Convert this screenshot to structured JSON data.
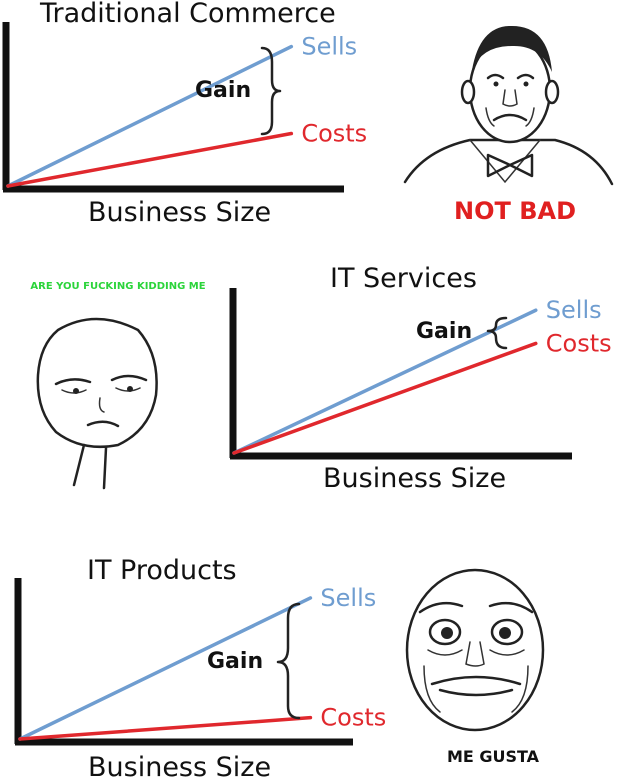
{
  "colors": {
    "sells": "#6f9dd0",
    "costs": "#e0282d",
    "axis": "#111111"
  },
  "chart_data": [
    {
      "type": "line",
      "title": "Traditional Commerce",
      "xlabel": "Business Size",
      "ylabel": "",
      "annotation": "Gain",
      "grid": false,
      "series": [
        {
          "name": "Sells",
          "x": [
            0,
            1
          ],
          "values": [
            0,
            0.85
          ]
        },
        {
          "name": "Costs",
          "x": [
            0,
            1
          ],
          "values": [
            0,
            0.32
          ]
        }
      ],
      "xlim": [
        0,
        1.2
      ],
      "ylim": [
        0,
        1
      ]
    },
    {
      "type": "line",
      "title": "IT Services",
      "xlabel": "Business Size",
      "ylabel": "",
      "annotation": "Gain",
      "grid": false,
      "series": [
        {
          "name": "Sells",
          "x": [
            0,
            1
          ],
          "values": [
            0,
            0.86
          ]
        },
        {
          "name": "Costs",
          "x": [
            0,
            1
          ],
          "values": [
            0,
            0.66
          ]
        }
      ],
      "xlim": [
        0,
        1.12
      ],
      "ylim": [
        0,
        1
      ]
    },
    {
      "type": "line",
      "title": "IT Products",
      "xlabel": "Business Size",
      "ylabel": "",
      "annotation": "Gain",
      "grid": false,
      "series": [
        {
          "name": "Sells",
          "x": [
            0,
            1
          ],
          "values": [
            0,
            0.86
          ]
        },
        {
          "name": "Costs",
          "x": [
            0,
            1
          ],
          "values": [
            0,
            0.13
          ]
        }
      ],
      "xlim": [
        0,
        1.15
      ],
      "ylim": [
        0,
        1
      ]
    }
  ],
  "memes": {
    "not_bad": {
      "caption": "NOT BAD",
      "icon": "not-bad-face-icon"
    },
    "kidding": {
      "caption": "ARE YOU FUCKING KIDDING ME",
      "icon": "are-you-kidding-face-icon"
    },
    "me_gusta": {
      "caption": "ME GUSTA",
      "icon": "me-gusta-face-icon"
    }
  }
}
